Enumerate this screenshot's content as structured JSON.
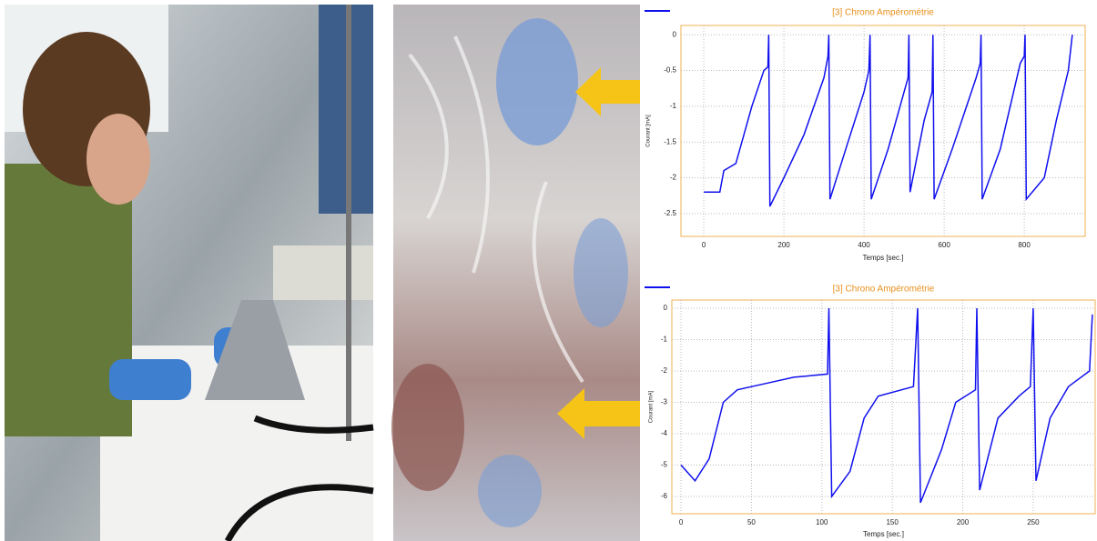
{
  "chart_data": [
    {
      "type": "line",
      "title": "[3] Chrono Ampérométrie",
      "x_label": "Temps [sec.]",
      "y_label": "Courant [mA]",
      "xlim": [
        -57,
        952
      ],
      "ylim": [
        -2.82,
        0.13
      ],
      "xticks": [
        0,
        200,
        400,
        600,
        800
      ],
      "yticks": [
        0,
        -0.5,
        -1,
        -1.5,
        -2,
        -2.5
      ],
      "grid": true,
      "series": [
        {
          "color": "#1010ee",
          "x": [
            0,
            40,
            50,
            80,
            120,
            150,
            160,
            162,
            165,
            200,
            250,
            300,
            310,
            312,
            315,
            360,
            400,
            412,
            415,
            418,
            460,
            500,
            510,
            512,
            515,
            550,
            570,
            572,
            575,
            620,
            680,
            690,
            692,
            695,
            740,
            790,
            800,
            802,
            805,
            850,
            880,
            910,
            920
          ],
          "values": [
            -2.2,
            -2.2,
            -1.9,
            -1.8,
            -1.0,
            -0.5,
            -0.45,
            0,
            -2.4,
            -2.0,
            -1.4,
            -0.6,
            -0.3,
            0,
            -2.3,
            -1.5,
            -0.8,
            -0.5,
            0,
            -2.3,
            -1.6,
            -0.8,
            -0.6,
            0,
            -2.2,
            -1.2,
            -0.8,
            0,
            -2.3,
            -1.6,
            -0.6,
            -0.4,
            0,
            -2.3,
            -1.6,
            -0.4,
            -0.3,
            0,
            -2.3,
            -2.0,
            -1.2,
            -0.5,
            0
          ]
        }
      ]
    },
    {
      "type": "line",
      "title": "[3] Chrono Ampérométrie",
      "x_label": "Temps [sec.]",
      "y_label": "Courant [mA]",
      "xlim": [
        -6.5,
        294
      ],
      "ylim": [
        -6.55,
        0.26
      ],
      "xticks": [
        0,
        50,
        100,
        150,
        200,
        250
      ],
      "yticks": [
        0,
        -1,
        -2,
        -3,
        -4,
        -5,
        -6
      ],
      "grid": true,
      "series": [
        {
          "color": "#1010ee",
          "x": [
            0,
            10,
            20,
            30,
            40,
            60,
            80,
            104,
            105,
            107,
            120,
            130,
            140,
            165,
            168,
            170,
            185,
            195,
            209,
            210,
            212,
            225,
            240,
            248,
            250,
            252,
            262,
            275,
            290,
            292
          ],
          "values": [
            -5.0,
            -5.5,
            -4.8,
            -3.0,
            -2.6,
            -2.4,
            -2.2,
            -2.1,
            0,
            -6.0,
            -5.2,
            -3.5,
            -2.8,
            -2.5,
            0,
            -6.2,
            -4.5,
            -3.0,
            -2.6,
            0,
            -5.8,
            -3.5,
            -2.8,
            -2.5,
            0,
            -5.5,
            -3.5,
            -2.5,
            -2.0,
            -0.2
          ]
        }
      ]
    }
  ]
}
